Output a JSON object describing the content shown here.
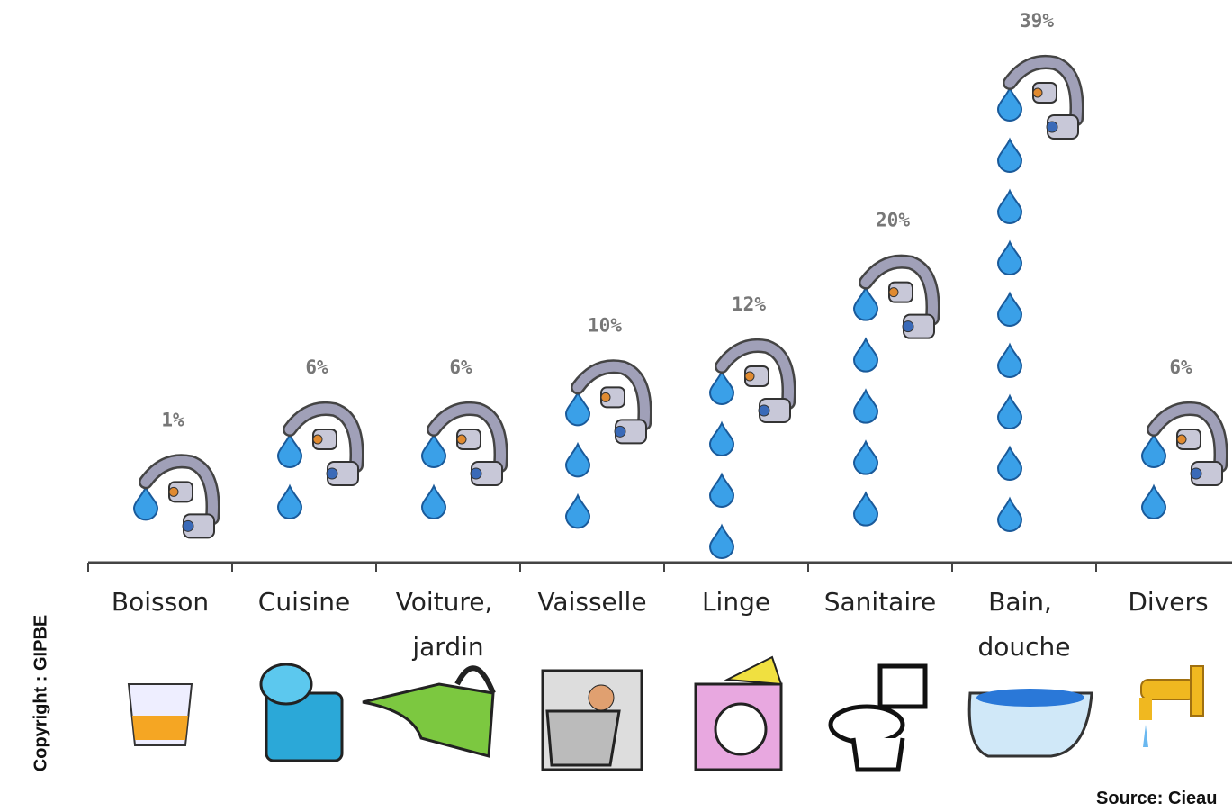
{
  "chart_data": {
    "type": "pictogram",
    "categories": [
      "Boisson",
      "Cuisine",
      "Voiture, jardin",
      "Vaisselle",
      "Linge",
      "Sanitaire",
      "Bain, douche",
      "Divers"
    ],
    "values": [
      1,
      6,
      6,
      10,
      12,
      20,
      39,
      6
    ],
    "value_labels": [
      "1%",
      "6%",
      "6%",
      "10%",
      "12%",
      "20%",
      "39%",
      "6%"
    ],
    "color": "#3aa0e8",
    "copyright": "Copyright : GIPBE",
    "source": "Source: Cieau"
  }
}
